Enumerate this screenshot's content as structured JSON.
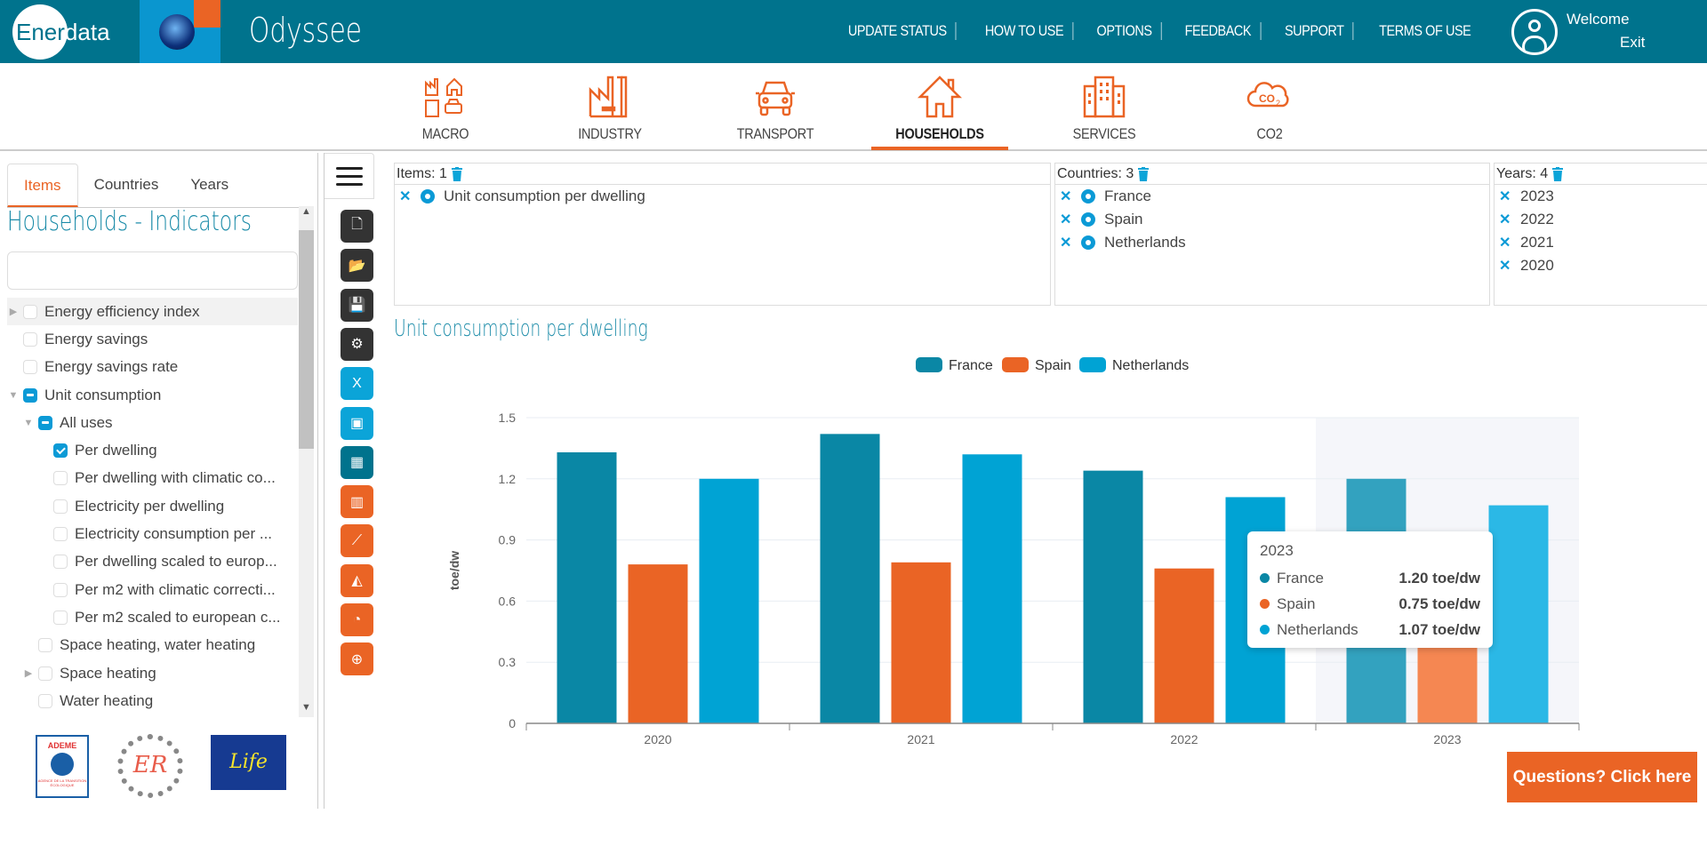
{
  "header": {
    "logo_text_a": "Ener",
    "logo_text_b": "data",
    "app_title": "Odyssee",
    "nav": [
      "UPDATE STATUS",
      "HOW TO USE",
      "OPTIONS",
      "FEEDBACK",
      "SUPPORT",
      "TERMS OF USE"
    ],
    "welcome": "Welcome",
    "exit": "Exit"
  },
  "sectors": [
    {
      "label": "MACRO",
      "icon": "macro-icon",
      "active": false
    },
    {
      "label": "INDUSTRY",
      "icon": "factory-icon",
      "active": false
    },
    {
      "label": "TRANSPORT",
      "icon": "car-icon",
      "active": false
    },
    {
      "label": "HOUSEHOLDS",
      "icon": "house-icon",
      "active": true
    },
    {
      "label": "SERVICES",
      "icon": "building-icon",
      "active": false
    },
    {
      "label": "CO2",
      "icon": "co2-cloud-icon",
      "active": false
    }
  ],
  "left_panel": {
    "tabs": [
      "Items",
      "Countries",
      "Years"
    ],
    "active_tab": "Items",
    "heading": "Households - Indicators",
    "search_placeholder": "",
    "tree": [
      {
        "label": "Energy efficiency index",
        "level": 0,
        "arrow": "right",
        "state": "unchecked",
        "highlight": true
      },
      {
        "label": "Energy savings",
        "level": 0,
        "arrow": "",
        "state": "unchecked"
      },
      {
        "label": "Energy savings rate",
        "level": 0,
        "arrow": "",
        "state": "unchecked"
      },
      {
        "label": "Unit consumption",
        "level": 0,
        "arrow": "down",
        "state": "partial"
      },
      {
        "label": "All uses",
        "level": 1,
        "arrow": "down",
        "state": "partial"
      },
      {
        "label": "Per dwelling",
        "level": 2,
        "arrow": "",
        "state": "checked"
      },
      {
        "label": "Per dwelling with climatic co...",
        "level": 2,
        "arrow": "",
        "state": "unchecked"
      },
      {
        "label": "Electricity per dwelling",
        "level": 2,
        "arrow": "",
        "state": "unchecked"
      },
      {
        "label": "Electricity consumption per ...",
        "level": 2,
        "arrow": "",
        "state": "unchecked"
      },
      {
        "label": "Per dwelling scaled to europ...",
        "level": 2,
        "arrow": "",
        "state": "unchecked"
      },
      {
        "label": "Per m2 with climatic correcti...",
        "level": 2,
        "arrow": "",
        "state": "unchecked"
      },
      {
        "label": "Per m2 scaled to european c...",
        "level": 2,
        "arrow": "",
        "state": "unchecked"
      },
      {
        "label": "Space heating, water heating",
        "level": 1,
        "arrow": "",
        "state": "unchecked"
      },
      {
        "label": "Space heating",
        "level": 1,
        "arrow": "right",
        "state": "unchecked"
      },
      {
        "label": "Water heating",
        "level": 1,
        "arrow": "",
        "state": "unchecked"
      }
    ],
    "logos": {
      "ademe": "ADEME",
      "ademe_sub": "AGENCE DE LA TRANSITION ÉCOLOGIQUE",
      "er": "ER",
      "life": "Life"
    }
  },
  "toolbar": [
    {
      "name": "new-file-icon",
      "glyph": "🗋",
      "style": "dark"
    },
    {
      "name": "open-folder-icon",
      "glyph": "📂",
      "style": "dark"
    },
    {
      "name": "save-icon",
      "glyph": "💾",
      "style": "dark"
    },
    {
      "name": "gear-icon",
      "glyph": "⚙",
      "style": "dark"
    },
    {
      "name": "excel-export-icon",
      "glyph": "X",
      "style": "blue"
    },
    {
      "name": "image-export-icon",
      "glyph": "▣",
      "style": "blue"
    },
    {
      "name": "table-view-icon",
      "glyph": "▦",
      "style": "teal"
    },
    {
      "name": "bar-chart-icon",
      "glyph": "▥",
      "style": "org"
    },
    {
      "name": "line-chart-icon",
      "glyph": "⟋",
      "style": "org"
    },
    {
      "name": "area-chart-icon",
      "glyph": "◭",
      "style": "org"
    },
    {
      "name": "pie-chart-icon",
      "glyph": "◔",
      "style": "org"
    },
    {
      "name": "globe-map-icon",
      "glyph": "⊕",
      "style": "org"
    }
  ],
  "selection": {
    "items": {
      "header": "Items: 1",
      "rows": [
        "Unit consumption per dwelling"
      ]
    },
    "countries": {
      "header": "Countries: 3",
      "rows": [
        "France",
        "Spain",
        "Netherlands"
      ]
    },
    "years": {
      "header": "Years: 4",
      "rows": [
        "2023",
        "2022",
        "2021",
        "2020"
      ]
    }
  },
  "colors": {
    "france": "#0a87a5",
    "spain": "#ea6425",
    "netherlands": "#00a3d4",
    "accent": "#ea6425",
    "brand": "#00738d"
  },
  "chart_data": {
    "type": "bar",
    "title": "Unit consumption per dwelling",
    "xlabel": "",
    "ylabel": "toe/dw",
    "ylim": [
      0,
      1.5
    ],
    "yticks": [
      "0",
      "0.3",
      "0.6",
      "0.9",
      "1.2",
      "1.5"
    ],
    "categories": [
      "2020",
      "2021",
      "2022",
      "2023"
    ],
    "series": [
      {
        "name": "France",
        "values": [
          1.33,
          1.42,
          1.24,
          1.2
        ]
      },
      {
        "name": "Spain",
        "values": [
          0.78,
          0.79,
          0.76,
          0.75
        ]
      },
      {
        "name": "Netherlands",
        "values": [
          1.2,
          1.32,
          1.11,
          1.07
        ]
      }
    ],
    "legend": "top-center",
    "grid": true,
    "highlighted_category": "2023"
  },
  "tooltip": {
    "title": "2023",
    "rows": [
      {
        "name": "France",
        "value": "1.20 toe/dw"
      },
      {
        "name": "Spain",
        "value": "0.75 toe/dw"
      },
      {
        "name": "Netherlands",
        "value": "1.07 toe/dw"
      }
    ]
  },
  "help_button": "Questions? Click here"
}
